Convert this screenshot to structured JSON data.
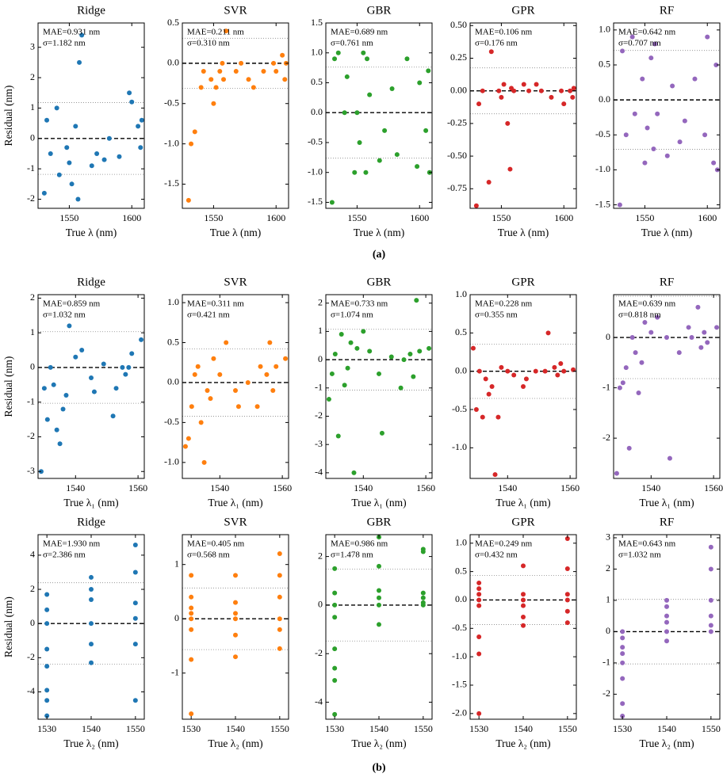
{
  "panel_labels": [
    "(a)",
    "(b)"
  ],
  "chart_data": [
    {
      "type": "scatter",
      "title": "Ridge",
      "xlabel": "True λ (nm)",
      "ylabel": "Residual (nm)",
      "color": "#1f77b4",
      "x": [
        1530,
        1532,
        1535,
        1540,
        1542,
        1548,
        1550,
        1552,
        1555,
        1557,
        1558,
        1560,
        1568,
        1572,
        1578,
        1582,
        1590,
        1598,
        1600,
        1605,
        1607,
        1608
      ],
      "values": [
        -1.8,
        0.6,
        -0.5,
        1.0,
        -1.2,
        -0.3,
        -0.8,
        -1.5,
        0.4,
        -2.0,
        2.5,
        3.4,
        -0.9,
        -0.5,
        -0.7,
        0.0,
        -0.6,
        1.5,
        1.2,
        0.4,
        -0.3,
        0.6
      ],
      "xlim": [
        1525,
        1610
      ],
      "ylim": [
        -2.3,
        3.8
      ],
      "xticks": [
        1550,
        1600
      ],
      "yticks": [
        -2,
        -1,
        0,
        1,
        2,
        3
      ],
      "mae": {
        "value": 0.931,
        "label": "MAE=0.931 nm"
      },
      "sigma": {
        "value": 1.182,
        "label": "σ=1.182 nm"
      },
      "zero_line": 0
    },
    {
      "type": "scatter",
      "title": "SVR",
      "xlabel": "True λ (nm)",
      "color": "#ff7f0e",
      "x": [
        1530,
        1532,
        1535,
        1540,
        1542,
        1548,
        1550,
        1552,
        1555,
        1557,
        1558,
        1560,
        1568,
        1572,
        1578,
        1582,
        1590,
        1598,
        1600,
        1605,
        1607,
        1608
      ],
      "values": [
        -1.7,
        -1.0,
        -0.85,
        -0.3,
        -0.1,
        -0.2,
        -0.5,
        -0.3,
        -0.1,
        0.0,
        -0.2,
        0.4,
        -0.1,
        0.0,
        -0.2,
        -0.3,
        -0.1,
        0.0,
        -0.1,
        0.1,
        -0.2,
        0.0
      ],
      "xlim": [
        1525,
        1610
      ],
      "ylim": [
        -1.8,
        0.5
      ],
      "xticks": [
        1550,
        1600
      ],
      "yticks": [
        -1.5,
        {
          "value": -1.0,
          "label": "-1.0"
        },
        -0.5,
        {
          "value": 0,
          "label": "0.0"
        },
        0.5
      ],
      "mae": {
        "value": 0.211,
        "label": "MAE=0.211 nm"
      },
      "sigma": {
        "value": 0.31,
        "label": "σ=0.310 nm"
      },
      "zero_line": 0
    },
    {
      "type": "scatter",
      "title": "GBR",
      "xlabel": "True λ (nm)",
      "color": "#2ca02c",
      "x": [
        1530,
        1532,
        1535,
        1540,
        1542,
        1548,
        1550,
        1552,
        1555,
        1557,
        1558,
        1560,
        1568,
        1572,
        1578,
        1582,
        1590,
        1598,
        1600,
        1605,
        1607,
        1608
      ],
      "values": [
        -1.5,
        0.9,
        1.0,
        0.0,
        0.6,
        -1.0,
        0.0,
        -0.5,
        1.0,
        -1.0,
        0.9,
        0.3,
        -0.8,
        -0.3,
        0.4,
        -0.7,
        0.9,
        -0.9,
        0.5,
        -0.3,
        0.7,
        -1.0
      ],
      "xlim": [
        1525,
        1610
      ],
      "ylim": [
        -1.6,
        1.5
      ],
      "xticks": [
        1550,
        1600
      ],
      "yticks": [
        -1.5,
        {
          "value": -1.0,
          "label": "-1.0"
        },
        -0.5,
        {
          "value": 0,
          "label": "0.0"
        },
        0.5,
        {
          "value": 1.0,
          "label": "1.0"
        },
        1.5
      ],
      "mae": {
        "value": 0.689,
        "label": "MAE=0.689 nm"
      },
      "sigma": {
        "value": 0.761,
        "label": "σ=0.761 nm"
      },
      "zero_line": 0
    },
    {
      "type": "scatter",
      "title": "GPR",
      "xlabel": "True λ (nm)",
      "color": "#d62728",
      "x": [
        1530,
        1532,
        1535,
        1540,
        1542,
        1548,
        1550,
        1552,
        1555,
        1557,
        1558,
        1560,
        1568,
        1572,
        1578,
        1582,
        1590,
        1598,
        1600,
        1605,
        1607,
        1608
      ],
      "values": [
        -0.88,
        -0.1,
        0.0,
        -0.7,
        0.3,
        0.0,
        -0.05,
        0.05,
        -0.25,
        -0.6,
        0.02,
        0.0,
        0.05,
        0.0,
        0.05,
        0.0,
        -0.05,
        0.0,
        -0.1,
        0.0,
        -0.05,
        0.02
      ],
      "xlim": [
        1525,
        1610
      ],
      "ylim": [
        -0.9,
        0.52
      ],
      "xticks": [
        1550,
        1600
      ],
      "yticks": [
        -0.75,
        {
          "value": -0.5,
          "label": "-0.50"
        },
        -0.25,
        {
          "value": 0,
          "label": "0.00"
        },
        0.25,
        {
          "value": 0.5,
          "label": "0.50"
        }
      ],
      "mae": {
        "value": 0.106,
        "label": "MAE=0.106 nm"
      },
      "sigma": {
        "value": 0.176,
        "label": "σ=0.176 nm"
      },
      "zero_line": 0
    },
    {
      "type": "scatter",
      "title": "RF",
      "xlabel": "True λ (nm)",
      "color": "#9467bd",
      "x": [
        1530,
        1532,
        1535,
        1540,
        1542,
        1548,
        1550,
        1552,
        1555,
        1557,
        1558,
        1560,
        1568,
        1572,
        1578,
        1582,
        1590,
        1598,
        1600,
        1605,
        1607,
        1608
      ],
      "values": [
        -1.5,
        0.7,
        -0.5,
        0.9,
        -0.2,
        0.3,
        -0.9,
        -0.4,
        0.6,
        -0.7,
        0.8,
        -0.2,
        -0.8,
        0.2,
        -0.6,
        -0.3,
        0.3,
        -0.5,
        0.9,
        -0.9,
        0.5,
        -1.0
      ],
      "xlim": [
        1525,
        1610
      ],
      "ylim": [
        -1.55,
        1.1
      ],
      "xticks": [
        1550,
        1600
      ],
      "yticks": [
        -1.5,
        {
          "value": -1.0,
          "label": "-1.0"
        },
        -0.5,
        {
          "value": 0,
          "label": "0.0"
        },
        0.5,
        {
          "value": 1.0,
          "label": "1.0"
        }
      ],
      "mae": {
        "value": 0.642,
        "label": "MAE=0.642 nm"
      },
      "sigma": {
        "value": 0.707,
        "label": "σ=0.707 nm"
      },
      "zero_line": 0
    },
    {
      "type": "scatter",
      "title": "Ridge",
      "xlabel": "True λ₁ (nm)",
      "ylabel": "Residual (nm)",
      "color": "#1f77b4",
      "x": [
        1529,
        1530,
        1531,
        1532,
        1533,
        1534,
        1535,
        1536,
        1537,
        1538,
        1540,
        1542,
        1545,
        1546,
        1549,
        1552,
        1553,
        1555,
        1556,
        1557,
        1558,
        1561
      ],
      "values": [
        -3.0,
        -0.6,
        -1.5,
        0.0,
        -0.5,
        -1.8,
        -2.2,
        -1.2,
        -0.8,
        1.2,
        0.3,
        0.5,
        -0.3,
        -0.7,
        0.1,
        -1.4,
        -0.6,
        0.0,
        -0.2,
        0.0,
        0.4,
        0.8
      ],
      "xlim": [
        1528,
        1562
      ],
      "ylim": [
        -3.2,
        2.1
      ],
      "xticks": [
        1540,
        1560
      ],
      "yticks": [
        -3,
        -2,
        -1,
        0,
        1,
        2
      ],
      "mae": {
        "value": 0.859,
        "label": "MAE=0.859 nm"
      },
      "sigma": {
        "value": 1.032,
        "label": "σ=1.032 nm"
      },
      "zero_line": 0
    },
    {
      "type": "scatter",
      "title": "SVR",
      "xlabel": "True λ₁ (nm)",
      "color": "#ff7f0e",
      "x": [
        1529,
        1530,
        1531,
        1532,
        1533,
        1534,
        1535,
        1536,
        1537,
        1538,
        1540,
        1542,
        1545,
        1546,
        1549,
        1552,
        1553,
        1555,
        1556,
        1557,
        1558,
        1561
      ],
      "values": [
        -0.8,
        -0.7,
        -0.3,
        0.1,
        0.2,
        -0.5,
        -1.0,
        -0.1,
        -0.2,
        0.3,
        0.1,
        0.5,
        -0.1,
        -0.3,
        0.0,
        -0.3,
        0.2,
        0.1,
        0.5,
        -0.1,
        0.2,
        0.3
      ],
      "xlim": [
        1528,
        1562
      ],
      "ylim": [
        -1.2,
        1.1
      ],
      "xticks": [
        1540,
        1560
      ],
      "yticks": [
        {
          "value": -1.0,
          "label": "-1.0"
        },
        -0.5,
        {
          "value": 0,
          "label": "0.0"
        },
        0.5,
        {
          "value": 1.0,
          "label": "1.0"
        }
      ],
      "mae": {
        "value": 0.311,
        "label": "MAE=0.311 nm"
      },
      "sigma": {
        "value": 0.421,
        "label": "σ=0.421 nm"
      },
      "zero_line": 0
    },
    {
      "type": "scatter",
      "title": "GBR",
      "xlabel": "True λ₁ (nm)",
      "color": "#2ca02c",
      "x": [
        1529,
        1530,
        1531,
        1532,
        1533,
        1534,
        1535,
        1536,
        1537,
        1538,
        1540,
        1542,
        1545,
        1546,
        1549,
        1552,
        1553,
        1555,
        1556,
        1557,
        1558,
        1561
      ],
      "values": [
        -1.4,
        -0.5,
        0.2,
        -2.7,
        0.9,
        -0.9,
        -0.3,
        0.6,
        -4.0,
        0.4,
        1.0,
        0.3,
        -0.5,
        -2.6,
        0.1,
        -1.0,
        0.0,
        0.2,
        -0.6,
        2.1,
        0.3,
        0.4
      ],
      "xlim": [
        1528,
        1562
      ],
      "ylim": [
        -4.2,
        2.3
      ],
      "xticks": [
        1540,
        1560
      ],
      "yticks": [
        -4,
        -3,
        -2,
        -1,
        0,
        1,
        2
      ],
      "mae": {
        "value": 0.733,
        "label": "MAE=0.733 nm"
      },
      "sigma": {
        "value": 1.074,
        "label": "σ=1.074 nm"
      },
      "zero_line": 0
    },
    {
      "type": "scatter",
      "title": "GPR",
      "xlabel": "True λ₁ (nm)",
      "color": "#d62728",
      "x": [
        1529,
        1530,
        1531,
        1532,
        1533,
        1534,
        1535,
        1536,
        1537,
        1538,
        1540,
        1542,
        1545,
        1546,
        1549,
        1552,
        1553,
        1555,
        1556,
        1557,
        1558,
        1561
      ],
      "values": [
        0.3,
        -0.5,
        0.0,
        -0.6,
        -0.1,
        -0.3,
        -0.2,
        -1.35,
        -0.6,
        0.05,
        0.0,
        -0.05,
        -0.2,
        -0.1,
        0.0,
        0.0,
        0.5,
        0.05,
        -0.05,
        0.1,
        0.0,
        0.02
      ],
      "xlim": [
        1528,
        1562
      ],
      "ylim": [
        -1.4,
        1.0
      ],
      "xticks": [
        1540,
        1560
      ],
      "yticks": [
        {
          "value": -1.0,
          "label": "-1.0"
        },
        -0.5,
        {
          "value": 0,
          "label": "0.0"
        },
        0.5,
        {
          "value": 1.0,
          "label": "1.0"
        }
      ],
      "mae": {
        "value": 0.228,
        "label": "MAE=0.228 nm"
      },
      "sigma": {
        "value": 0.355,
        "label": "σ=0.355 nm"
      },
      "zero_line": 0
    },
    {
      "type": "scatter",
      "title": "RF",
      "xlabel": "True λ₁ (nm)",
      "color": "#9467bd",
      "x": [
        1529,
        1530,
        1531,
        1532,
        1533,
        1534,
        1535,
        1536,
        1537,
        1538,
        1540,
        1542,
        1545,
        1546,
        1549,
        1552,
        1553,
        1555,
        1556,
        1557,
        1558,
        1561
      ],
      "values": [
        -2.7,
        -1.0,
        -0.9,
        -0.6,
        -2.2,
        0.0,
        -0.3,
        -1.1,
        -0.5,
        0.3,
        0.1,
        0.4,
        0.0,
        -2.4,
        -0.3,
        0.2,
        0.0,
        0.6,
        -0.2,
        0.1,
        -0.1,
        0.2
      ],
      "xlim": [
        1528,
        1562
      ],
      "ylim": [
        -2.8,
        0.85
      ],
      "xticks": [
        1540,
        1560
      ],
      "yticks": [
        -2,
        -1,
        0
      ],
      "mae": {
        "value": 0.639,
        "label": "MAE=0.639 nm"
      },
      "sigma": {
        "value": 0.818,
        "label": "σ=0.818 nm"
      },
      "zero_line": 0
    },
    {
      "type": "scatter",
      "title": "Ridge",
      "xlabel": "True λ₂ (nm)",
      "ylabel": "Residual (nm)",
      "color": "#1f77b4",
      "x": [
        1530,
        1530,
        1530,
        1530,
        1530,
        1530,
        1530,
        1530,
        1540,
        1540,
        1540,
        1540,
        1540,
        1540,
        1550,
        1550,
        1550,
        1550,
        1550,
        1550
      ],
      "values": [
        -5.4,
        -4.5,
        -2.5,
        -1.5,
        0.0,
        0.8,
        1.7,
        -3.9,
        -2.3,
        -1.2,
        0.0,
        1.4,
        2.0,
        2.7,
        -4.5,
        -1.2,
        0.3,
        1.2,
        3.0,
        4.6
      ],
      "xlim": [
        1528,
        1552
      ],
      "ylim": [
        -5.6,
        5.2
      ],
      "xticks": [
        1530,
        1540,
        1550
      ],
      "yticks": [
        -4,
        -2,
        0,
        2,
        4
      ],
      "mae": {
        "value": 1.93,
        "label": "MAE=1.930 nm"
      },
      "sigma": {
        "value": 2.386,
        "label": "σ=2.386 nm"
      },
      "zero_line": 0
    },
    {
      "type": "scatter",
      "title": "SVR",
      "xlabel": "True λ₂ (nm)",
      "color": "#ff7f0e",
      "x": [
        1530,
        1530,
        1530,
        1530,
        1530,
        1530,
        1530,
        1530,
        1540,
        1540,
        1540,
        1540,
        1540,
        1540,
        1550,
        1550,
        1550,
        1550,
        1550,
        1550
      ],
      "values": [
        -1.75,
        -0.75,
        -0.2,
        0.0,
        0.2,
        0.4,
        0.8,
        0.1,
        -0.7,
        -0.3,
        0.0,
        0.1,
        0.3,
        0.8,
        -0.55,
        -0.2,
        0.0,
        0.4,
        0.8,
        1.2
      ],
      "xlim": [
        1528,
        1552
      ],
      "ylim": [
        -1.85,
        1.55
      ],
      "xticks": [
        1530,
        1540,
        1550
      ],
      "yticks": [
        -1,
        0,
        1
      ],
      "mae": {
        "value": 0.405,
        "label": "MAE=0.405 nm"
      },
      "sigma": {
        "value": 0.568,
        "label": "σ=0.568 nm"
      },
      "zero_line": 0
    },
    {
      "type": "scatter",
      "title": "GBR",
      "xlabel": "True λ₂ (nm)",
      "color": "#2ca02c",
      "x": [
        1530,
        1530,
        1530,
        1530,
        1530,
        1530,
        1530,
        1530,
        1540,
        1540,
        1540,
        1540,
        1540,
        1540,
        1550,
        1550,
        1550,
        1550,
        1550,
        1550
      ],
      "values": [
        -4.5,
        -3.1,
        -2.6,
        -1.8,
        -0.5,
        0.0,
        0.5,
        1.5,
        -0.8,
        0.0,
        0.3,
        0.6,
        1.6,
        2.8,
        0.0,
        0.1,
        0.3,
        0.5,
        2.2,
        2.3
      ],
      "xlim": [
        1528,
        1552
      ],
      "ylim": [
        -4.7,
        2.9
      ],
      "xticks": [
        1530,
        1540,
        1550
      ],
      "yticks": [
        -4,
        -2,
        0,
        2
      ],
      "mae": {
        "value": 0.986,
        "label": "MAE=0.986 nm"
      },
      "sigma": {
        "value": 1.478,
        "label": "σ=1.478 nm"
      },
      "zero_line": 0
    },
    {
      "type": "scatter",
      "title": "GPR",
      "xlabel": "True λ₂ (nm)",
      "color": "#d62728",
      "x": [
        1530,
        1530,
        1530,
        1530,
        1530,
        1530,
        1530,
        1530,
        1540,
        1540,
        1540,
        1540,
        1540,
        1540,
        1550,
        1550,
        1550,
        1550,
        1550,
        1550
      ],
      "values": [
        -2.0,
        -0.95,
        -0.65,
        -0.1,
        0.0,
        0.1,
        0.2,
        0.3,
        -0.45,
        -0.3,
        -0.1,
        0.0,
        0.1,
        0.6,
        -0.4,
        -0.2,
        0.0,
        0.1,
        0.55,
        1.08
      ],
      "xlim": [
        1528,
        1552
      ],
      "ylim": [
        -2.1,
        1.15
      ],
      "xticks": [
        1530,
        1540,
        1550
      ],
      "yticks": [
        {
          "value": -2.0,
          "label": "-2.0"
        },
        -1.5,
        {
          "value": -1.0,
          "label": "-1.0"
        },
        -0.5,
        {
          "value": 0,
          "label": "0.0"
        },
        0.5,
        {
          "value": 1.0,
          "label": "1.0"
        }
      ],
      "mae": {
        "value": 0.249,
        "label": "MAE=0.249 nm"
      },
      "sigma": {
        "value": 0.432,
        "label": "σ=0.432 nm"
      },
      "zero_line": 0
    },
    {
      "type": "scatter",
      "title": "RF",
      "xlabel": "True λ₂ (nm)",
      "color": "#9467bd",
      "x": [
        1530,
        1530,
        1530,
        1530,
        1530,
        1530,
        1530,
        1530,
        1540,
        1540,
        1540,
        1540,
        1540,
        1540,
        1550,
        1550,
        1550,
        1550,
        1550,
        1550
      ],
      "values": [
        -2.7,
        -2.3,
        -1.0,
        -0.7,
        -0.5,
        -0.2,
        0.0,
        -1.5,
        -0.3,
        0.0,
        0.3,
        0.5,
        0.8,
        1.0,
        0.0,
        0.2,
        0.5,
        1.0,
        2.0,
        2.7
      ],
      "xlim": [
        1528,
        1552
      ],
      "ylim": [
        -2.8,
        3.1
      ],
      "xticks": [
        1530,
        1540,
        1550
      ],
      "yticks": [
        -2,
        -1,
        0,
        1,
        2,
        3
      ],
      "mae": {
        "value": 0.643,
        "label": "MAE=0.643 nm"
      },
      "sigma": {
        "value": 1.032,
        "label": "σ=1.032 nm"
      },
      "zero_line": 0
    }
  ]
}
